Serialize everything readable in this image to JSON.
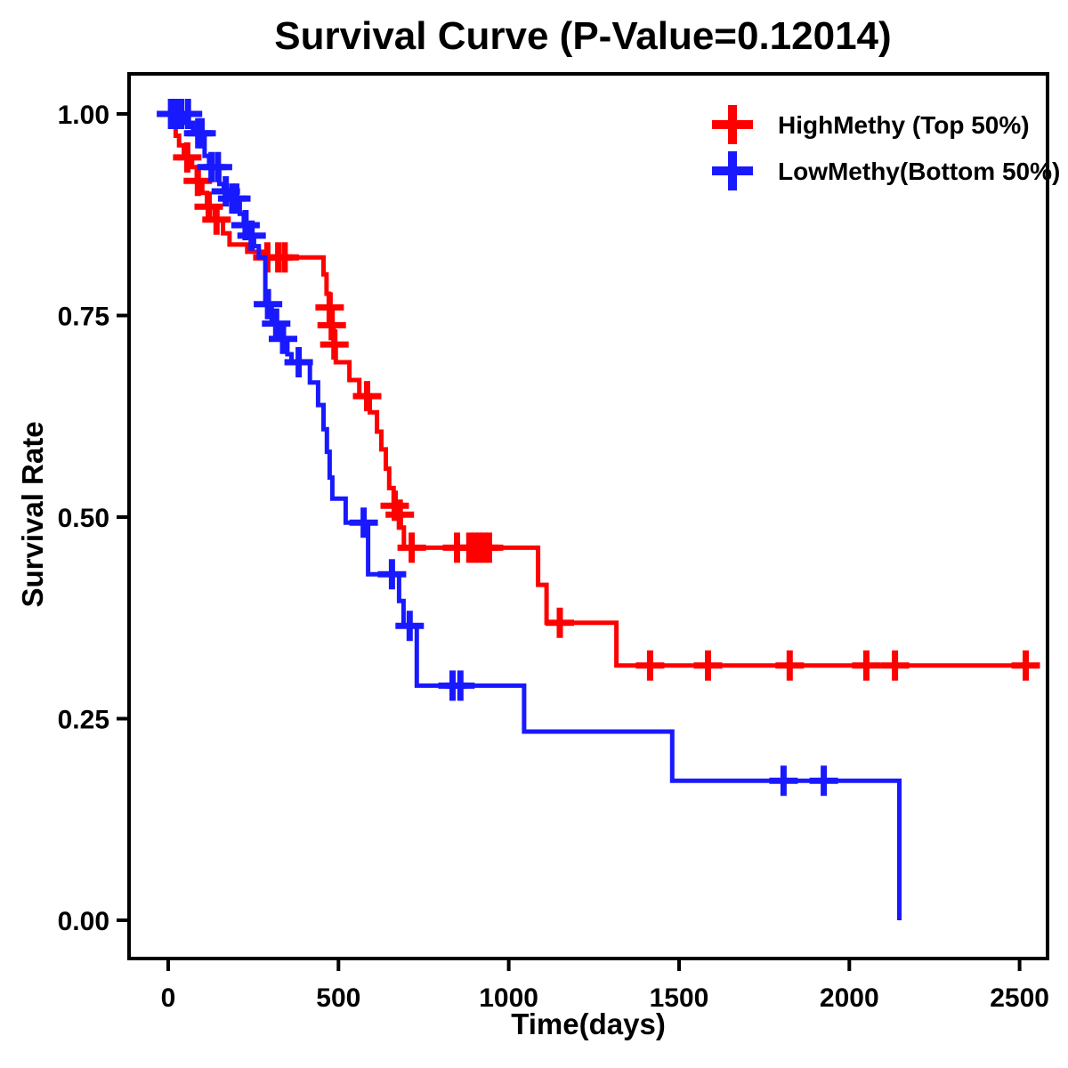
{
  "title": "Survival Curve (P-Value=0.12014)",
  "chart_data": {
    "type": "line",
    "subtype": "kaplan-meier-step",
    "title": "Survival Curve (P-Value=0.12014)",
    "p_value": "0.12014",
    "xlabel": "Time(days)",
    "ylabel": "Survival Rate",
    "xlim": [
      -115,
      2582
    ],
    "ylim": [
      -0.05,
      1.055
    ],
    "grid": false,
    "legend_position": "top-right",
    "x_ticks": [
      {
        "label": "0",
        "value": 0
      },
      {
        "label": "500",
        "value": 500
      },
      {
        "label": "1000",
        "value": 1000
      },
      {
        "label": "1500",
        "value": 1500
      },
      {
        "label": "2000",
        "value": 2000
      },
      {
        "label": "2500",
        "value": 2500
      }
    ],
    "y_ticks": [
      {
        "label": "1.00",
        "value": 1.0
      },
      {
        "label": "0.75",
        "value": 0.75
      },
      {
        "label": "0.50",
        "value": 0.5
      },
      {
        "label": "0.25",
        "value": 0.25
      },
      {
        "label": "0.00",
        "value": 0.0
      }
    ],
    "series": [
      {
        "id": "highmethy",
        "name": "HighMethy (Top 50%)",
        "color": "#FF0000",
        "end_time": 2552,
        "step_points": [
          [
            0,
            1.0
          ],
          [
            12,
            0.987
          ],
          [
            22,
            0.973
          ],
          [
            32,
            0.961
          ],
          [
            46,
            0.946
          ],
          [
            70,
            0.934
          ],
          [
            84,
            0.917
          ],
          [
            100,
            0.902
          ],
          [
            114,
            0.885
          ],
          [
            136,
            0.869
          ],
          [
            161,
            0.852
          ],
          [
            180,
            0.838
          ],
          [
            232,
            0.829
          ],
          [
            278,
            0.822
          ],
          [
            456,
            0.801
          ],
          [
            465,
            0.777
          ],
          [
            472,
            0.76
          ],
          [
            478,
            0.738
          ],
          [
            486,
            0.714
          ],
          [
            492,
            0.692
          ],
          [
            532,
            0.67
          ],
          [
            561,
            0.65
          ],
          [
            592,
            0.63
          ],
          [
            613,
            0.606
          ],
          [
            626,
            0.584
          ],
          [
            639,
            0.56
          ],
          [
            649,
            0.536
          ],
          [
            662,
            0.514
          ],
          [
            675,
            0.503
          ],
          [
            683,
            0.487
          ],
          [
            692,
            0.462
          ],
          [
            1086,
            0.416
          ],
          [
            1111,
            0.369
          ],
          [
            1316,
            0.316
          ]
        ],
        "censor_marks": [
          [
            56,
            0.946
          ],
          [
            87,
            0.917
          ],
          [
            119,
            0.885
          ],
          [
            142,
            0.869
          ],
          [
            291,
            0.822
          ],
          [
            323,
            0.822
          ],
          [
            342,
            0.822
          ],
          [
            474,
            0.76
          ],
          [
            480,
            0.738
          ],
          [
            488,
            0.714
          ],
          [
            584,
            0.65
          ],
          [
            665,
            0.514
          ],
          [
            680,
            0.503
          ],
          [
            715,
            0.462
          ],
          [
            848,
            0.462
          ],
          [
            884,
            0.462
          ],
          [
            900,
            0.462
          ],
          [
            914,
            0.462
          ],
          [
            928,
            0.462
          ],
          [
            942,
            0.462
          ],
          [
            1150,
            0.369
          ],
          [
            1415,
            0.316
          ],
          [
            1585,
            0.316
          ],
          [
            1825,
            0.316
          ],
          [
            2050,
            0.316
          ],
          [
            2134,
            0.316
          ],
          [
            2518,
            0.316
          ]
        ]
      },
      {
        "id": "lowmethy",
        "name": "LowMethy(Bottom 50%)",
        "color": "#1919FF",
        "end_time": 2147,
        "step_points": [
          [
            0,
            1.0
          ],
          [
            52,
            0.989
          ],
          [
            73,
            0.976
          ],
          [
            107,
            0.948
          ],
          [
            120,
            0.934
          ],
          [
            150,
            0.913
          ],
          [
            163,
            0.904
          ],
          [
            178,
            0.895
          ],
          [
            210,
            0.876
          ],
          [
            222,
            0.862
          ],
          [
            237,
            0.849
          ],
          [
            252,
            0.836
          ],
          [
            266,
            0.822
          ],
          [
            285,
            0.764
          ],
          [
            304,
            0.74
          ],
          [
            325,
            0.721
          ],
          [
            350,
            0.702
          ],
          [
            362,
            0.692
          ],
          [
            416,
            0.667
          ],
          [
            440,
            0.639
          ],
          [
            456,
            0.609
          ],
          [
            466,
            0.581
          ],
          [
            474,
            0.549
          ],
          [
            482,
            0.523
          ],
          [
            521,
            0.493
          ],
          [
            587,
            0.429
          ],
          [
            678,
            0.396
          ],
          [
            691,
            0.365
          ],
          [
            730,
            0.291
          ],
          [
            1045,
            0.234
          ],
          [
            1480,
            0.173
          ],
          [
            2147,
            0.0
          ]
        ],
        "censor_marks": [
          [
            8,
            1.0
          ],
          [
            22,
            1.0
          ],
          [
            38,
            1.0
          ],
          [
            58,
            1.0
          ],
          [
            88,
            0.976
          ],
          [
            98,
            0.976
          ],
          [
            127,
            0.934
          ],
          [
            146,
            0.934
          ],
          [
            169,
            0.904
          ],
          [
            188,
            0.895
          ],
          [
            200,
            0.895
          ],
          [
            227,
            0.862
          ],
          [
            245,
            0.849
          ],
          [
            293,
            0.764
          ],
          [
            317,
            0.74
          ],
          [
            337,
            0.721
          ],
          [
            383,
            0.692
          ],
          [
            574,
            0.493
          ],
          [
            657,
            0.429
          ],
          [
            709,
            0.365
          ],
          [
            835,
            0.291
          ],
          [
            858,
            0.291
          ],
          [
            1807,
            0.173
          ],
          [
            1925,
            0.173
          ]
        ]
      }
    ]
  }
}
